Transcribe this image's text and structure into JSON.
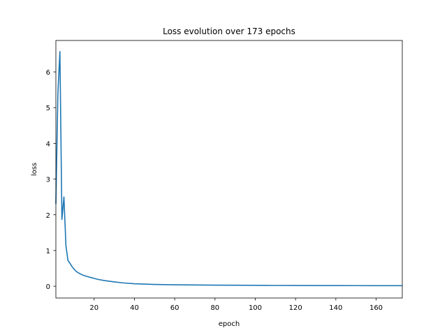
{
  "chart_data": {
    "type": "line",
    "title": "Loss evolution over 173 epochs",
    "xlabel": "epoch",
    "ylabel": "loss",
    "xlim": [
      1,
      173
    ],
    "ylim": [
      -0.33,
      6.88
    ],
    "xticks": [
      20,
      40,
      60,
      80,
      100,
      120,
      140,
      160
    ],
    "yticks": [
      0,
      1,
      2,
      3,
      4,
      5,
      6
    ],
    "grid": false,
    "legend": "none",
    "series": [
      {
        "color": "#1f77b4",
        "x": [
          1,
          2,
          3,
          4,
          5,
          6,
          7,
          8,
          9,
          10,
          11,
          12,
          13,
          14,
          15,
          16,
          18,
          20,
          22,
          25,
          30,
          35,
          40,
          45,
          50,
          60,
          70,
          80,
          90,
          100,
          110,
          120,
          130,
          140,
          150,
          160,
          173
        ],
        "y": [
          2.3,
          5.4,
          6.57,
          1.87,
          2.5,
          1.13,
          0.72,
          0.64,
          0.55,
          0.48,
          0.42,
          0.38,
          0.35,
          0.32,
          0.3,
          0.28,
          0.25,
          0.22,
          0.19,
          0.16,
          0.12,
          0.09,
          0.07,
          0.06,
          0.05,
          0.04,
          0.035,
          0.03,
          0.028,
          0.025,
          0.022,
          0.02,
          0.019,
          0.018,
          0.017,
          0.016,
          0.015
        ]
      }
    ]
  }
}
